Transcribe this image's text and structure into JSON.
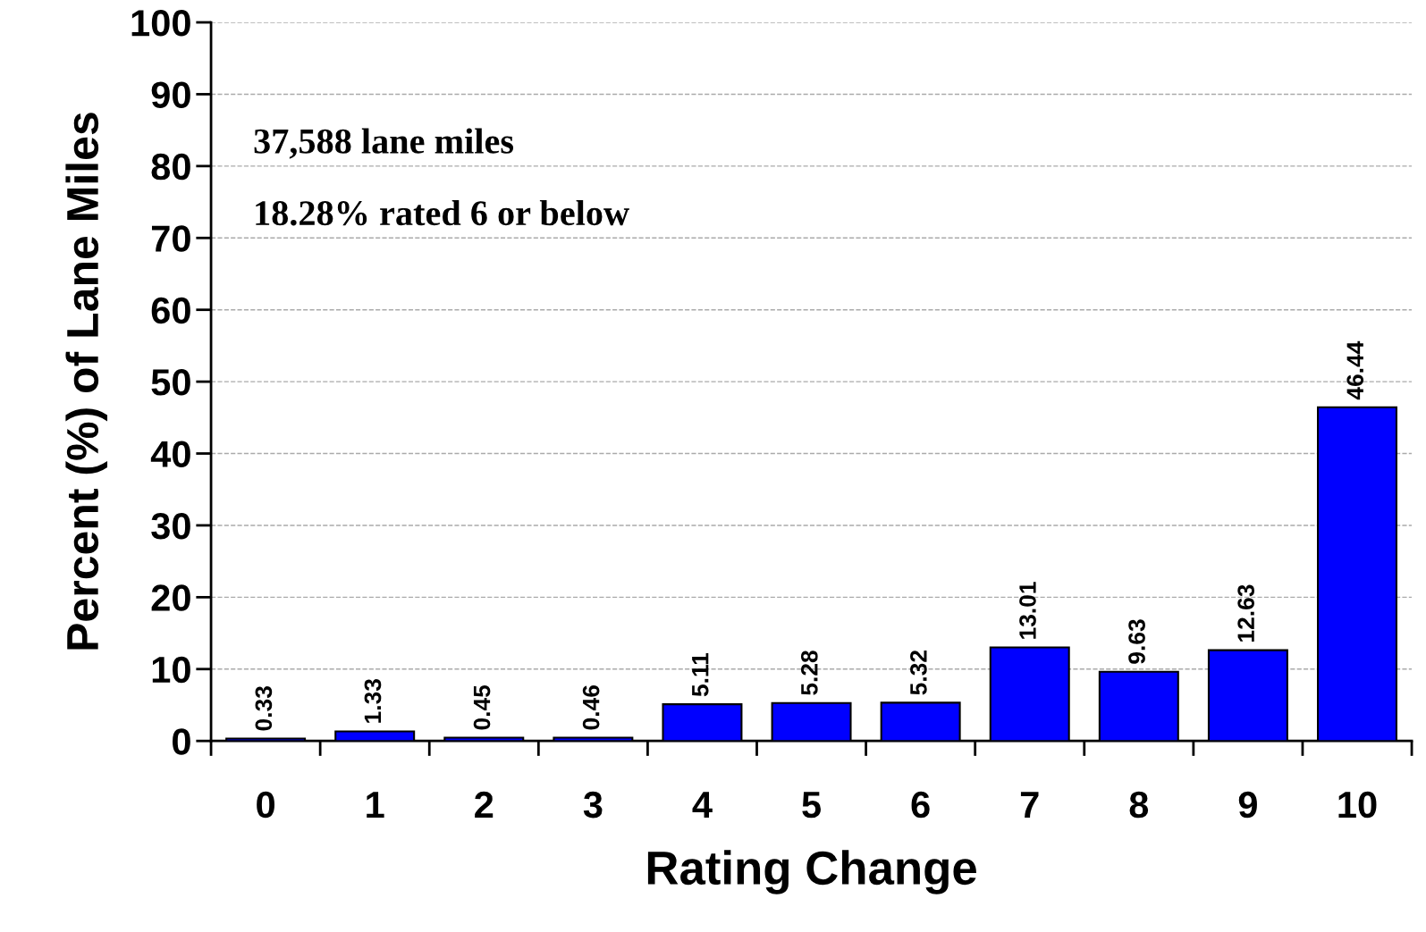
{
  "chart_data": {
    "type": "bar",
    "xlabel": "Rating Change",
    "ylabel": "Percent (%) of Lane Miles",
    "categories": [
      "0",
      "1",
      "2",
      "3",
      "4",
      "5",
      "6",
      "7",
      "8",
      "9",
      "10"
    ],
    "values": [
      0.33,
      1.33,
      0.45,
      0.46,
      5.11,
      5.28,
      5.32,
      13.01,
      9.63,
      12.63,
      46.44
    ],
    "color": "#0000ff",
    "data_labels": true,
    "ylim": [
      0,
      100
    ],
    "yticks": [
      0,
      10,
      20,
      30,
      40,
      50,
      60,
      70,
      80,
      90,
      100
    ],
    "grid": "y",
    "annotations": [
      "37,588 lane miles",
      "18.28% rated 6 or below"
    ]
  }
}
